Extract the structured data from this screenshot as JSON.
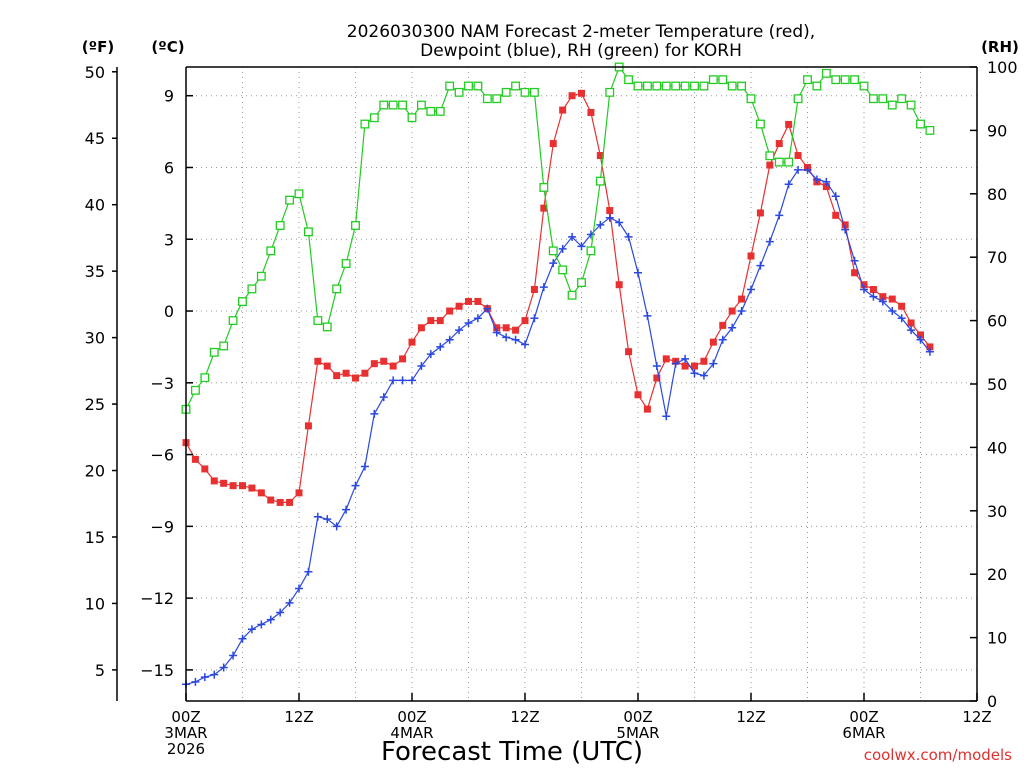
{
  "title_line1": "2026030300 NAM Forecast 2-meter Temperature (red),",
  "title_line2": "Dewpoint (blue), RH (green) for KORH",
  "unit_f": "(ºF)",
  "unit_c": "(ºC)",
  "unit_rh": "(RH)",
  "watermark": "coolwx.com/models",
  "chart_data": {
    "type": "line",
    "xlabel": "Forecast Time (UTC)",
    "x_unit": "forecast hour from 2026-03-03 00Z",
    "xlim": [
      0,
      84
    ],
    "x_ticks": [
      {
        "x": 0,
        "lines": [
          "00Z",
          "3MAR",
          "2026"
        ]
      },
      {
        "x": 12,
        "lines": [
          "12Z"
        ]
      },
      {
        "x": 24,
        "lines": [
          "00Z",
          "4MAR"
        ]
      },
      {
        "x": 36,
        "lines": [
          "12Z"
        ]
      },
      {
        "x": 48,
        "lines": [
          "00Z",
          "5MAR"
        ]
      },
      {
        "x": 60,
        "lines": [
          "12Z"
        ]
      },
      {
        "x": 72,
        "lines": [
          "00Z",
          "6MAR"
        ]
      },
      {
        "x": 84,
        "lines": [
          "12Z"
        ]
      }
    ],
    "y_celsius": {
      "min": -16.3,
      "max": 10.2,
      "ticks": [
        9,
        6,
        3,
        0,
        -3,
        -6,
        -9,
        -12,
        -15
      ],
      "labels": [
        "9",
        "6",
        "3",
        "0",
        "−3",
        "−6",
        "−9",
        "−12",
        "−15"
      ]
    },
    "y_fahrenheit": {
      "ticks": [
        50,
        45,
        40,
        35,
        30,
        25,
        20,
        15,
        10,
        5
      ],
      "labels": [
        "50",
        "45",
        "40",
        "35",
        "30",
        "25",
        "20",
        "15",
        "10",
        "5"
      ]
    },
    "y_rh": {
      "min": 0,
      "max": 100,
      "ticks": [
        100,
        90,
        80,
        70,
        60,
        50,
        40,
        30,
        20,
        10,
        0
      ],
      "labels": [
        "100",
        "90",
        "80",
        "70",
        "60",
        "50",
        "40",
        "30",
        "20",
        "10",
        "0"
      ]
    },
    "grid": true,
    "series": [
      {
        "name": "Temperature",
        "axis": "celsius",
        "color": "#e83030",
        "marker": "filled-square",
        "values": [
          -5.5,
          -6.2,
          -6.6,
          -7.1,
          -7.2,
          -7.3,
          -7.3,
          -7.4,
          -7.6,
          -7.9,
          -8.0,
          -8.0,
          -7.6,
          -4.8,
          -2.1,
          -2.3,
          -2.7,
          -2.6,
          -2.8,
          -2.6,
          -2.2,
          -2.1,
          -2.3,
          -2.0,
          -1.3,
          -0.7,
          -0.4,
          -0.4,
          0.0,
          0.2,
          0.4,
          0.4,
          0.1,
          -0.7,
          -0.7,
          -0.8,
          -0.4,
          0.9,
          4.3,
          7.0,
          8.4,
          9.0,
          9.1,
          8.3,
          6.5,
          4.2,
          1.1,
          -1.7,
          -3.5,
          -4.1,
          -2.8,
          -2.0,
          -2.1,
          -2.3,
          -2.3,
          -2.1,
          -1.3,
          -0.6,
          0.0,
          0.5,
          2.3,
          4.1,
          6.1,
          7.0,
          7.8,
          6.5,
          6.0,
          5.4,
          5.2,
          4.0,
          3.6,
          1.6,
          1.1,
          0.9,
          0.6,
          0.5,
          0.2,
          -0.5,
          -1.0,
          -1.5
        ]
      },
      {
        "name": "Dewpoint",
        "axis": "celsius",
        "color": "#2a48e0",
        "marker": "plus",
        "values": [
          -15.6,
          -15.5,
          -15.3,
          -15.2,
          -14.9,
          -14.4,
          -13.7,
          -13.3,
          -13.1,
          -12.9,
          -12.6,
          -12.2,
          -11.6,
          -10.9,
          -8.6,
          -8.7,
          -9.0,
          -8.3,
          -7.3,
          -6.5,
          -4.3,
          -3.6,
          -2.9,
          -2.9,
          -2.9,
          -2.3,
          -1.8,
          -1.5,
          -1.2,
          -0.8,
          -0.5,
          -0.3,
          0.1,
          -0.9,
          -1.1,
          -1.2,
          -1.4,
          -0.3,
          1.0,
          2.0,
          2.6,
          3.1,
          2.7,
          3.2,
          3.6,
          3.9,
          3.7,
          3.1,
          1.6,
          -0.2,
          -2.3,
          -4.4,
          -2.2,
          -2.0,
          -2.6,
          -2.7,
          -2.2,
          -1.2,
          -0.7,
          0.0,
          0.9,
          1.9,
          2.9,
          4.0,
          5.3,
          5.9,
          5.9,
          5.5,
          5.4,
          4.8,
          3.4,
          2.1,
          0.9,
          0.6,
          0.4,
          0.0,
          -0.3,
          -0.8,
          -1.2,
          -1.7
        ]
      },
      {
        "name": "RH",
        "axis": "rh",
        "color": "#22cc22",
        "marker": "open-square",
        "values": [
          46,
          49,
          51,
          55,
          56,
          60,
          63,
          65,
          67,
          71,
          75,
          79,
          80,
          74,
          60,
          59,
          65,
          69,
          75,
          91,
          92,
          94,
          94,
          94,
          92,
          94,
          93,
          93,
          97,
          96,
          97,
          97,
          95,
          95,
          96,
          97,
          96,
          96,
          81,
          71,
          68,
          64,
          66,
          71,
          82,
          96,
          100,
          98,
          97,
          97,
          97,
          97,
          97,
          97,
          97,
          97,
          98,
          98,
          97,
          97,
          95,
          91,
          86,
          85,
          85,
          95,
          98,
          97,
          99,
          98,
          98,
          98,
          97,
          95,
          95,
          94,
          95,
          94,
          91,
          90
        ]
      }
    ]
  }
}
